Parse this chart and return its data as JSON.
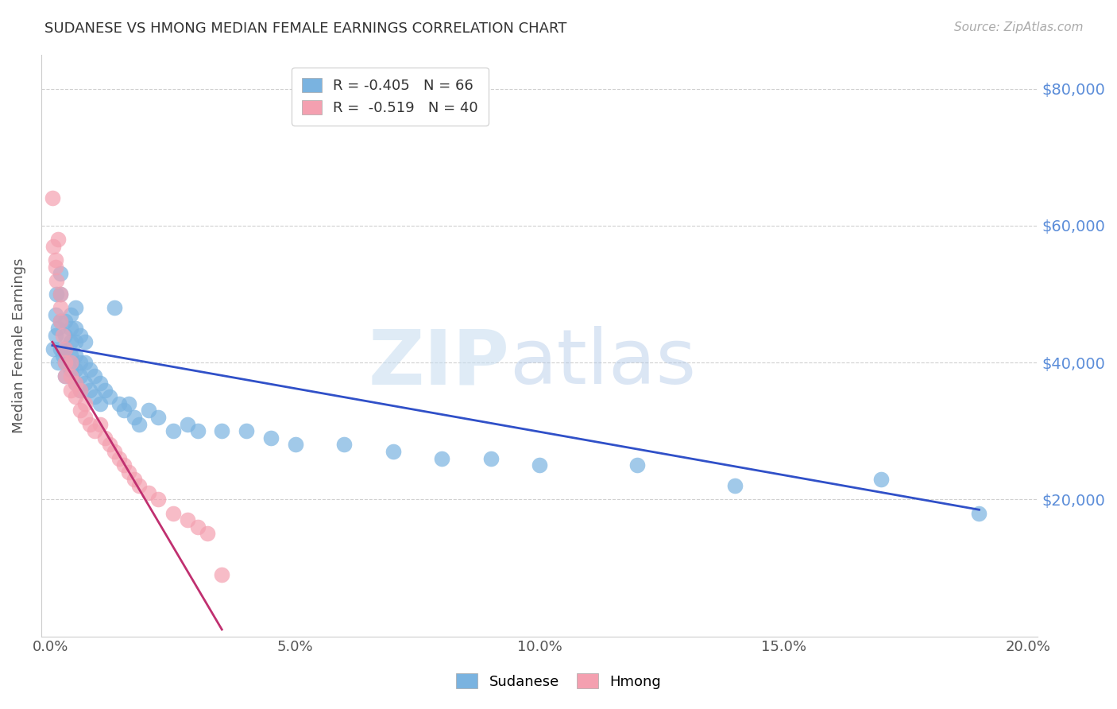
{
  "title": "SUDANESE VS HMONG MEDIAN FEMALE EARNINGS CORRELATION CHART",
  "source": "Source: ZipAtlas.com",
  "ylabel": "Median Female Earnings",
  "xlabel_ticks": [
    "0.0%",
    "5.0%",
    "10.0%",
    "15.0%",
    "20.0%"
  ],
  "xlabel_vals": [
    0.0,
    0.05,
    0.1,
    0.15,
    0.2
  ],
  "ytick_labels": [
    "$20,000",
    "$40,000",
    "$60,000",
    "$80,000"
  ],
  "ytick_vals": [
    20000,
    40000,
    60000,
    80000
  ],
  "ymin": 0,
  "ymax": 85000,
  "xmin": -0.002,
  "xmax": 0.202,
  "sudanese_color": "#7ab3e0",
  "hmong_color": "#f4a0b0",
  "sudanese_line_color": "#3050c8",
  "hmong_line_color": "#c03070",
  "legend_R_sudanese": "R = -0.405",
  "legend_N_sudanese": "N = 66",
  "legend_R_hmong": "R =  -0.519",
  "legend_N_hmong": "N = 40",
  "grid_color": "#d0d0d0",
  "sudanese_x": [
    0.0005,
    0.001,
    0.001,
    0.0012,
    0.0015,
    0.0015,
    0.002,
    0.002,
    0.002,
    0.002,
    0.0025,
    0.003,
    0.003,
    0.003,
    0.003,
    0.003,
    0.004,
    0.004,
    0.004,
    0.004,
    0.004,
    0.005,
    0.005,
    0.005,
    0.005,
    0.005,
    0.005,
    0.006,
    0.006,
    0.006,
    0.006,
    0.007,
    0.007,
    0.007,
    0.008,
    0.008,
    0.009,
    0.009,
    0.01,
    0.01,
    0.011,
    0.012,
    0.013,
    0.014,
    0.015,
    0.016,
    0.017,
    0.018,
    0.02,
    0.022,
    0.025,
    0.028,
    0.03,
    0.035,
    0.04,
    0.045,
    0.05,
    0.06,
    0.07,
    0.08,
    0.09,
    0.1,
    0.12,
    0.14,
    0.17,
    0.19
  ],
  "sudanese_y": [
    42000,
    44000,
    47000,
    50000,
    40000,
    45000,
    42000,
    46000,
    50000,
    53000,
    41000,
    38000,
    40000,
    42000,
    44000,
    46000,
    39000,
    41000,
    43000,
    45000,
    47000,
    37000,
    39000,
    41000,
    43000,
    45000,
    48000,
    36000,
    38000,
    40000,
    44000,
    37000,
    40000,
    43000,
    36000,
    39000,
    35000,
    38000,
    34000,
    37000,
    36000,
    35000,
    48000,
    34000,
    33000,
    34000,
    32000,
    31000,
    33000,
    32000,
    30000,
    31000,
    30000,
    30000,
    30000,
    29000,
    28000,
    28000,
    27000,
    26000,
    26000,
    25000,
    25000,
    22000,
    23000,
    18000
  ],
  "hmong_x": [
    0.0003,
    0.0005,
    0.001,
    0.001,
    0.0012,
    0.0015,
    0.002,
    0.002,
    0.002,
    0.0025,
    0.003,
    0.003,
    0.003,
    0.004,
    0.004,
    0.004,
    0.005,
    0.005,
    0.006,
    0.006,
    0.007,
    0.007,
    0.008,
    0.009,
    0.01,
    0.011,
    0.012,
    0.013,
    0.014,
    0.015,
    0.016,
    0.017,
    0.018,
    0.02,
    0.022,
    0.025,
    0.028,
    0.03,
    0.032,
    0.035
  ],
  "hmong_y": [
    64000,
    57000,
    54000,
    55000,
    52000,
    58000,
    50000,
    48000,
    46000,
    44000,
    42000,
    40000,
    38000,
    36000,
    38000,
    40000,
    35000,
    37000,
    33000,
    36000,
    32000,
    34000,
    31000,
    30000,
    31000,
    29000,
    28000,
    27000,
    26000,
    25000,
    24000,
    23000,
    22000,
    21000,
    20000,
    18000,
    17000,
    16000,
    15000,
    9000
  ],
  "sudanese_line_x": [
    0.0003,
    0.19
  ],
  "sudanese_line_y": [
    42500,
    18500
  ],
  "hmong_line_x": [
    0.0003,
    0.035
  ],
  "hmong_line_y": [
    43000,
    1000
  ],
  "background_color": "#ffffff",
  "plot_bg_color": "#ffffff"
}
